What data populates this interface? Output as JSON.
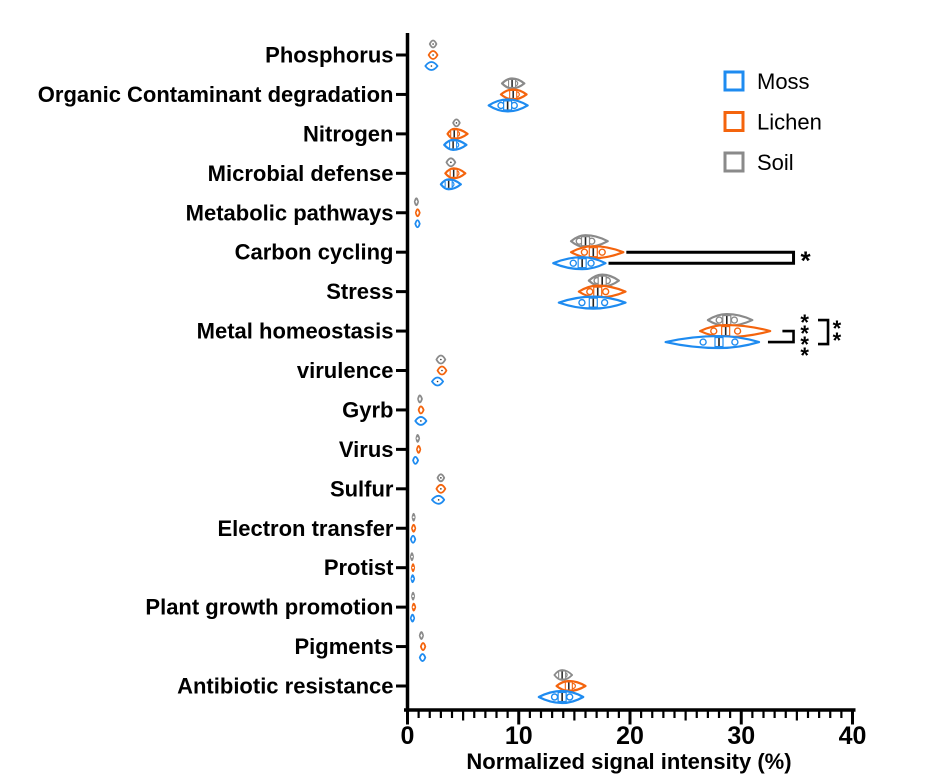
{
  "figure_title": "",
  "legend": {
    "items": [
      {
        "label": "Moss",
        "color": "#1E8BF0"
      },
      {
        "label": "Lichen",
        "color": "#F4640D"
      },
      {
        "label": "Soil",
        "color": "#8A8A8A"
      }
    ]
  },
  "chart_data": {
    "type": "violin",
    "orientation": "horizontal",
    "title": "",
    "xlabel": "Normalized signal intensity (%)",
    "ylabel": "",
    "xlim": [
      0,
      40
    ],
    "x_major_ticks": [
      0,
      10,
      20,
      30,
      40
    ],
    "x_minor_step": 1,
    "grid": false,
    "legend_position": "top-right",
    "categories": [
      "Phosphorus",
      "Organic Contaminant degradation",
      "Nitrogen",
      "Microbial defense",
      "Metabolic pathways",
      "Carbon cycling",
      "Stress",
      "Metal homeostasis",
      "virulence",
      "Gyrb",
      "Virus",
      "Sulfur",
      "Electron transfer",
      "Protist",
      "Plant growth promotion",
      "Pigments",
      "Antibiotic resistance"
    ],
    "series": [
      {
        "name": "Soil",
        "color": "#8A8A8A",
        "row_offset": -11,
        "values": [
          {
            "med": 2.3,
            "lo": 2.0,
            "hi": 2.6
          },
          {
            "med": 9.4,
            "lo": 8.5,
            "hi": 10.5
          },
          {
            "med": 4.4,
            "lo": 4.1,
            "hi": 4.7
          },
          {
            "med": 3.9,
            "lo": 3.5,
            "hi": 4.3
          },
          {
            "med": 0.8,
            "lo": 0.65,
            "hi": 0.95
          },
          {
            "med": 16.0,
            "lo": 14.7,
            "hi": 18.0
          },
          {
            "med": 17.5,
            "lo": 16.3,
            "hi": 19.0
          },
          {
            "med": 28.7,
            "lo": 27.0,
            "hi": 31.0
          },
          {
            "med": 3.0,
            "lo": 2.6,
            "hi": 3.4
          },
          {
            "med": 1.1,
            "lo": 0.95,
            "hi": 1.3
          },
          {
            "med": 0.9,
            "lo": 0.8,
            "hi": 1.05
          },
          {
            "med": 3.0,
            "lo": 2.7,
            "hi": 3.3
          },
          {
            "med": 0.55,
            "lo": 0.45,
            "hi": 0.65
          },
          {
            "med": 0.4,
            "lo": 0.3,
            "hi": 0.5
          },
          {
            "med": 0.5,
            "lo": 0.4,
            "hi": 0.6
          },
          {
            "med": 1.25,
            "lo": 1.1,
            "hi": 1.4
          },
          {
            "med": 13.9,
            "lo": 13.2,
            "hi": 14.8
          }
        ]
      },
      {
        "name": "Lichen",
        "color": "#F4640D",
        "row_offset": 0,
        "values": [
          {
            "med": 2.3,
            "lo": 1.9,
            "hi": 2.7
          },
          {
            "med": 9.5,
            "lo": 8.4,
            "hi": 10.7
          },
          {
            "med": 4.2,
            "lo": 3.6,
            "hi": 5.4
          },
          {
            "med": 4.15,
            "lo": 3.4,
            "hi": 5.2
          },
          {
            "med": 0.9,
            "lo": 0.75,
            "hi": 1.1
          },
          {
            "med": 16.7,
            "lo": 14.7,
            "hi": 19.4
          },
          {
            "med": 17.1,
            "lo": 15.4,
            "hi": 19.6
          },
          {
            "med": 28.6,
            "lo": 26.3,
            "hi": 32.6
          },
          {
            "med": 3.1,
            "lo": 2.7,
            "hi": 3.5
          },
          {
            "med": 1.2,
            "lo": 1.0,
            "hi": 1.45
          },
          {
            "med": 1.0,
            "lo": 0.85,
            "hi": 1.15
          },
          {
            "med": 3.0,
            "lo": 2.6,
            "hi": 3.4
          },
          {
            "med": 0.55,
            "lo": 0.4,
            "hi": 0.7
          },
          {
            "med": 0.5,
            "lo": 0.4,
            "hi": 0.6
          },
          {
            "med": 0.55,
            "lo": 0.45,
            "hi": 0.7
          },
          {
            "med": 1.4,
            "lo": 1.2,
            "hi": 1.6
          },
          {
            "med": 14.5,
            "lo": 13.4,
            "hi": 16.0
          }
        ]
      },
      {
        "name": "Moss",
        "color": "#1E8BF0",
        "row_offset": 11,
        "values": [
          {
            "med": 2.15,
            "lo": 1.6,
            "hi": 2.7
          },
          {
            "med": 9.0,
            "lo": 7.3,
            "hi": 10.8
          },
          {
            "med": 4.1,
            "lo": 3.3,
            "hi": 5.3
          },
          {
            "med": 3.7,
            "lo": 3.0,
            "hi": 4.8
          },
          {
            "med": 0.9,
            "lo": 0.7,
            "hi": 1.1
          },
          {
            "med": 15.7,
            "lo": 13.1,
            "hi": 17.8
          },
          {
            "med": 16.7,
            "lo": 13.6,
            "hi": 19.6
          },
          {
            "med": 28.0,
            "lo": 23.2,
            "hi": 31.6
          },
          {
            "med": 2.7,
            "lo": 2.2,
            "hi": 3.2
          },
          {
            "med": 1.2,
            "lo": 0.7,
            "hi": 1.7
          },
          {
            "med": 0.7,
            "lo": 0.5,
            "hi": 0.95
          },
          {
            "med": 2.8,
            "lo": 2.2,
            "hi": 3.3
          },
          {
            "med": 0.5,
            "lo": 0.3,
            "hi": 0.7
          },
          {
            "med": 0.45,
            "lo": 0.35,
            "hi": 0.6
          },
          {
            "med": 0.45,
            "lo": 0.3,
            "hi": 0.6
          },
          {
            "med": 1.35,
            "lo": 1.1,
            "hi": 1.6
          },
          {
            "med": 13.9,
            "lo": 11.8,
            "hi": 15.8
          }
        ]
      }
    ],
    "annotations": [
      {
        "style": "long",
        "category": "Carbon cycling",
        "comparison": "Lichen vs Moss",
        "x_end": 34.7,
        "label": "*"
      },
      {
        "style": "corner",
        "category": "Metal homeostasis",
        "comparison": "Lichen vs Moss",
        "x_top_start": 33.7,
        "x_bottom_start": 32.4,
        "x_end": 34.7,
        "label": "****",
        "label_x": 35.7,
        "stack": true
      },
      {
        "style": "span",
        "category": "Metal homeostasis",
        "comparison": "Soil vs Moss",
        "x_start": 36.9,
        "x_end": 37.8,
        "label": "**",
        "label_x": 38.6,
        "stack": true
      }
    ]
  }
}
